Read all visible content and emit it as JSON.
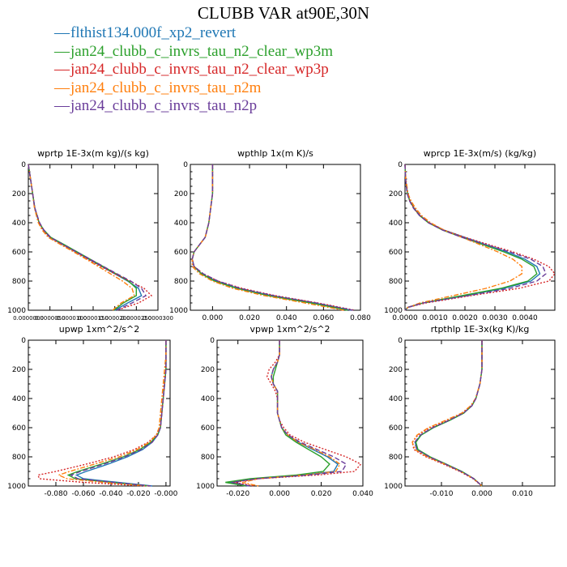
{
  "title": "CLUBB VAR at90E,30N",
  "legend": [
    {
      "label": "flthist134.000f_xp2_revert",
      "color": "#1f77b4",
      "dash": "solid"
    },
    {
      "label": "jan24_clubb_c_invrs_tau_n2_clear_wp3m",
      "color": "#2ca02c",
      "dash": "solid"
    },
    {
      "label": "jan24_clubb_c_invrs_tau_n2_clear_wp3p",
      "color": "#d62728",
      "dash": "dotted"
    },
    {
      "label": "jan24_clubb_c_invrs_tau_n2m",
      "color": "#ff7f0e",
      "dash": "dashdot"
    },
    {
      "label": "jan24_clubb_c_invrs_tau_n2p",
      "color": "#6a3d9a",
      "dash": "dashed"
    }
  ],
  "chart_data": [
    {
      "type": "line",
      "title": "wprtp  1E-3x(m kg)/(s kg)",
      "ylim": [
        1000,
        0
      ],
      "xlim": [
        0.0,
        3e-05
      ],
      "yticks": [
        "0",
        "200",
        "400",
        "600",
        "800",
        "1000"
      ],
      "xticks": [
        "0.0000000",
        "0.0000050",
        "0.0000100",
        "0.0000150",
        "0.0000200",
        "0.0000250",
        "0.0000300"
      ],
      "y": [
        0,
        100,
        200,
        300,
        400,
        450,
        500,
        550,
        600,
        650,
        700,
        750,
        800,
        850,
        900,
        950,
        1000
      ],
      "series": [
        {
          "values": [
            0.0,
            5e-07,
            1e-06,
            1.5e-06,
            2.5e-06,
            3.5e-06,
            5e-06,
            8e-06,
            1.1e-05,
            1.4e-05,
            1.7e-05,
            2e-05,
            2.3e-05,
            2.55e-05,
            2.62e-05,
            2.3e-05,
            2e-05
          ]
        },
        {
          "values": [
            0.0,
            5e-07,
            1e-06,
            1.5e-06,
            2.5e-06,
            3.6e-06,
            5.2e-06,
            8.3e-06,
            1.13e-05,
            1.43e-05,
            1.73e-05,
            2.03e-05,
            2.32e-05,
            2.5e-05,
            2.5e-05,
            2.2e-05,
            1.98e-05
          ]
        },
        {
          "values": [
            0.0,
            5e-07,
            1e-06,
            1.5e-06,
            2.5e-06,
            3.4e-06,
            4.8e-06,
            7.8e-06,
            1.08e-05,
            1.38e-05,
            1.68e-05,
            2e-05,
            2.35e-05,
            2.68e-05,
            2.85e-05,
            2.55e-05,
            2.05e-05
          ]
        },
        {
          "values": [
            0.0,
            5e-07,
            1e-06,
            1.4e-06,
            2.3e-06,
            3.2e-06,
            4.6e-06,
            7.5e-06,
            1.05e-05,
            1.34e-05,
            1.62e-05,
            1.9e-05,
            2.18e-05,
            2.4e-05,
            2.45e-05,
            2.15e-05,
            1.95e-05
          ]
        },
        {
          "values": [
            0.0,
            5e-07,
            1e-06,
            1.5e-06,
            2.6e-06,
            3.6e-06,
            5.1e-06,
            8.1e-06,
            1.12e-05,
            1.43e-05,
            1.74e-05,
            2.05e-05,
            2.37e-05,
            2.62e-05,
            2.72e-05,
            2.4e-05,
            2.05e-05
          ]
        }
      ]
    },
    {
      "type": "line",
      "title": "wpthlp  1x(m K)/s",
      "ylim": [
        1000,
        0
      ],
      "xlim": [
        -0.012,
        0.08
      ],
      "yticks": [
        "0",
        "200",
        "400",
        "600",
        "800",
        "1000"
      ],
      "xticks": [
        "0.000",
        "0.020",
        "0.040",
        "0.060",
        "0.080"
      ],
      "y": [
        0,
        100,
        200,
        300,
        400,
        500,
        550,
        600,
        650,
        700,
        750,
        800,
        850,
        900,
        950,
        1000
      ],
      "series": [
        {
          "values": [
            0.0,
            0.0,
            0.0,
            -0.001,
            -0.002,
            -0.004,
            -0.007,
            -0.01,
            -0.011,
            -0.01,
            -0.006,
            0.002,
            0.014,
            0.032,
            0.055,
            0.075
          ]
        },
        {
          "values": [
            0.0,
            0.0,
            0.0,
            -0.001,
            -0.002,
            -0.004,
            -0.007,
            -0.01,
            -0.011,
            -0.01,
            -0.006,
            0.001,
            0.013,
            0.03,
            0.053,
            0.073
          ]
        },
        {
          "values": [
            0.0,
            0.0,
            0.0,
            -0.001,
            -0.002,
            -0.004,
            -0.007,
            -0.01,
            -0.011,
            -0.01,
            -0.005,
            0.003,
            0.016,
            0.034,
            0.057,
            0.077
          ]
        },
        {
          "values": [
            0.0,
            0.0,
            0.0,
            -0.001,
            -0.002,
            -0.004,
            -0.007,
            -0.01,
            -0.011,
            -0.011,
            -0.007,
            0.0,
            0.011,
            0.028,
            0.05,
            0.071
          ]
        },
        {
          "values": [
            0.0,
            0.0,
            0.0,
            -0.001,
            -0.002,
            -0.004,
            -0.007,
            -0.01,
            -0.011,
            -0.01,
            -0.005,
            0.003,
            0.015,
            0.033,
            0.056,
            0.076
          ]
        }
      ]
    },
    {
      "type": "line",
      "title": "wprcp  1E-3x(m/s) (kg/kg)",
      "ylim": [
        1000,
        0
      ],
      "xlim": [
        0.0,
        0.005
      ],
      "yticks": [
        "0",
        "200",
        "400",
        "600",
        "800",
        "1000"
      ],
      "xticks": [
        "0.0000",
        "0.0010",
        "0.0020",
        "0.0030",
        "0.0040"
      ],
      "y": [
        0,
        100,
        200,
        250,
        300,
        350,
        400,
        450,
        500,
        550,
        600,
        650,
        700,
        750,
        800,
        850,
        900,
        950,
        980,
        1000
      ],
      "series": [
        {
          "values": [
            0.0,
            2e-05,
            8e-05,
            0.00016,
            0.0003,
            0.0005,
            0.0008,
            0.0013,
            0.002,
            0.0027,
            0.0034,
            0.004,
            0.0044,
            0.0045,
            0.0042,
            0.0033,
            0.002,
            0.0006,
            0.0001,
            0.0
          ]
        },
        {
          "values": [
            0.0,
            2e-05,
            8e-05,
            0.00016,
            0.0003,
            0.00048,
            0.00078,
            0.00125,
            0.0019,
            0.0026,
            0.0033,
            0.0039,
            0.0043,
            0.0044,
            0.0041,
            0.0032,
            0.0019,
            0.0006,
            0.0001,
            0.0
          ]
        },
        {
          "values": [
            0.0,
            2e-05,
            8e-05,
            0.00016,
            0.0003,
            0.0005,
            0.0008,
            0.0013,
            0.002,
            0.0028,
            0.0036,
            0.0043,
            0.0048,
            0.005,
            0.0048,
            0.0038,
            0.0022,
            0.0007,
            0.0001,
            0.0
          ]
        },
        {
          "values": [
            0.0,
            3e-05,
            0.0001,
            0.0002,
            0.00035,
            0.00055,
            0.00085,
            0.0013,
            0.0019,
            0.0025,
            0.0031,
            0.0036,
            0.0039,
            0.0039,
            0.0035,
            0.0027,
            0.0016,
            0.0005,
            0.0001,
            0.0
          ]
        },
        {
          "values": [
            0.0,
            2e-05,
            7e-05,
            0.00015,
            0.00028,
            0.00048,
            0.00078,
            0.00125,
            0.0019,
            0.0027,
            0.0035,
            0.0042,
            0.0046,
            0.0047,
            0.0044,
            0.0035,
            0.0021,
            0.0006,
            0.0001,
            0.0
          ]
        }
      ]
    },
    {
      "type": "line",
      "title": "upwp  1xm^2/s^2",
      "ylim": [
        1000,
        0
      ],
      "xlim": [
        -0.1,
        0.003
      ],
      "yticks": [
        "0",
        "200",
        "400",
        "600",
        "800",
        "1000"
      ],
      "xticks": [
        "-0.080",
        "-0.060",
        "-0.040",
        "-0.020",
        "-0.000"
      ],
      "y": [
        0,
        100,
        200,
        300,
        400,
        500,
        600,
        650,
        700,
        750,
        800,
        850,
        900,
        925,
        950,
        975,
        1000
      ],
      "series": [
        {
          "values": [
            0.0,
            0.0,
            0.0,
            -0.001,
            -0.002,
            -0.003,
            -0.004,
            -0.006,
            -0.01,
            -0.017,
            -0.028,
            -0.042,
            -0.058,
            -0.065,
            -0.06,
            -0.035,
            -0.01
          ]
        },
        {
          "values": [
            0.0,
            0.0,
            0.0,
            -0.001,
            -0.002,
            -0.003,
            -0.004,
            -0.006,
            -0.011,
            -0.019,
            -0.031,
            -0.047,
            -0.064,
            -0.071,
            -0.066,
            -0.04,
            -0.012
          ]
        },
        {
          "values": [
            0.0,
            0.0,
            0.0,
            -0.001,
            -0.002,
            -0.003,
            -0.004,
            -0.007,
            -0.013,
            -0.023,
            -0.038,
            -0.058,
            -0.08,
            -0.093,
            -0.092,
            -0.06,
            -0.015
          ]
        },
        {
          "values": [
            0.0,
            0.0,
            -0.001,
            -0.002,
            -0.003,
            -0.004,
            -0.005,
            -0.007,
            -0.012,
            -0.021,
            -0.034,
            -0.052,
            -0.07,
            -0.078,
            -0.072,
            -0.045,
            -0.012
          ]
        },
        {
          "values": [
            0.0,
            0.0,
            0.0,
            -0.001,
            -0.002,
            -0.003,
            -0.004,
            -0.006,
            -0.01,
            -0.018,
            -0.03,
            -0.045,
            -0.062,
            -0.069,
            -0.064,
            -0.038,
            -0.011
          ]
        }
      ]
    },
    {
      "type": "line",
      "title": "vpwp  1xm^2/s^2",
      "ylim": [
        1000,
        0
      ],
      "xlim": [
        -0.03,
        0.04
      ],
      "yticks": [
        "0",
        "200",
        "400",
        "600",
        "800",
        "1000"
      ],
      "xticks": [
        "-0.020",
        "0.000",
        "0.020",
        "0.040"
      ],
      "y": [
        0,
        100,
        150,
        200,
        250,
        300,
        350,
        400,
        450,
        500,
        550,
        600,
        650,
        700,
        750,
        800,
        850,
        900,
        925,
        950,
        975,
        1000
      ],
      "series": [
        {
          "values": [
            0.0,
            0.0,
            -0.001,
            -0.003,
            -0.004,
            -0.003,
            -0.001,
            -0.001,
            -0.001,
            -0.001,
            0.0,
            0.001,
            0.004,
            0.009,
            0.016,
            0.023,
            0.028,
            0.026,
            0.012,
            -0.012,
            -0.024,
            -0.015
          ]
        },
        {
          "values": [
            0.0,
            0.0,
            -0.001,
            -0.002,
            -0.003,
            -0.003,
            -0.001,
            -0.001,
            -0.001,
            -0.001,
            0.0,
            0.001,
            0.003,
            0.008,
            0.014,
            0.02,
            0.024,
            0.021,
            0.008,
            -0.014,
            -0.026,
            -0.016
          ]
        },
        {
          "values": [
            0.0,
            0.0,
            -0.002,
            -0.005,
            -0.006,
            -0.004,
            -0.002,
            -0.001,
            -0.001,
            -0.001,
            0.0,
            0.002,
            0.005,
            0.012,
            0.022,
            0.032,
            0.039,
            0.036,
            0.018,
            -0.01,
            -0.022,
            -0.012
          ]
        },
        {
          "values": [
            0.0,
            0.0,
            -0.001,
            -0.003,
            -0.004,
            -0.003,
            -0.001,
            -0.001,
            -0.001,
            -0.001,
            0.0,
            0.001,
            0.004,
            0.009,
            0.017,
            0.024,
            0.029,
            0.027,
            0.012,
            -0.01,
            -0.018,
            -0.01
          ]
        },
        {
          "values": [
            0.0,
            0.0,
            -0.001,
            -0.003,
            -0.004,
            -0.003,
            -0.001,
            -0.001,
            -0.001,
            -0.001,
            0.0,
            0.001,
            0.004,
            0.01,
            0.018,
            0.026,
            0.032,
            0.03,
            0.014,
            -0.011,
            -0.023,
            -0.014
          ]
        }
      ]
    },
    {
      "type": "line",
      "title": "rtpthlp  1E-3x(kg K)/kg",
      "ylim": [
        1000,
        0
      ],
      "xlim": [
        -0.019,
        0.018
      ],
      "yticks": [
        "0",
        "200",
        "400",
        "600",
        "800",
        "1000"
      ],
      "xticks": [
        "-0.010",
        "0.000",
        "0.010"
      ],
      "y": [
        0,
        100,
        200,
        300,
        400,
        450,
        500,
        550,
        600,
        650,
        700,
        750,
        800,
        850,
        900,
        950,
        1000
      ],
      "series": [
        {
          "values": [
            0.0,
            0.0,
            0.0,
            -0.0005,
            -0.0015,
            -0.0025,
            -0.0045,
            -0.008,
            -0.012,
            -0.015,
            -0.0165,
            -0.016,
            -0.013,
            -0.009,
            -0.005,
            -0.002,
            0.0
          ]
        },
        {
          "values": [
            0.0,
            0.0,
            0.0,
            -0.0005,
            -0.0015,
            -0.0025,
            -0.0045,
            -0.008,
            -0.012,
            -0.015,
            -0.0163,
            -0.0158,
            -0.0128,
            -0.0088,
            -0.005,
            -0.002,
            0.0
          ]
        },
        {
          "values": [
            0.0,
            0.0,
            0.0,
            -0.0005,
            -0.0015,
            -0.0027,
            -0.0048,
            -0.0085,
            -0.0128,
            -0.0158,
            -0.0172,
            -0.0168,
            -0.0138,
            -0.0095,
            -0.0055,
            -0.0022,
            0.0
          ]
        },
        {
          "values": [
            0.0,
            0.0,
            0.0,
            -0.0005,
            -0.0016,
            -0.0028,
            -0.005,
            -0.009,
            -0.0132,
            -0.016,
            -0.0172,
            -0.0165,
            -0.0135,
            -0.0092,
            -0.0053,
            -0.002,
            0.0
          ]
        },
        {
          "values": [
            0.0,
            0.0,
            0.0,
            -0.0005,
            -0.0015,
            -0.0025,
            -0.0046,
            -0.0082,
            -0.0122,
            -0.0152,
            -0.0166,
            -0.0161,
            -0.013,
            -0.009,
            -0.0052,
            -0.002,
            0.0
          ]
        }
      ]
    }
  ]
}
